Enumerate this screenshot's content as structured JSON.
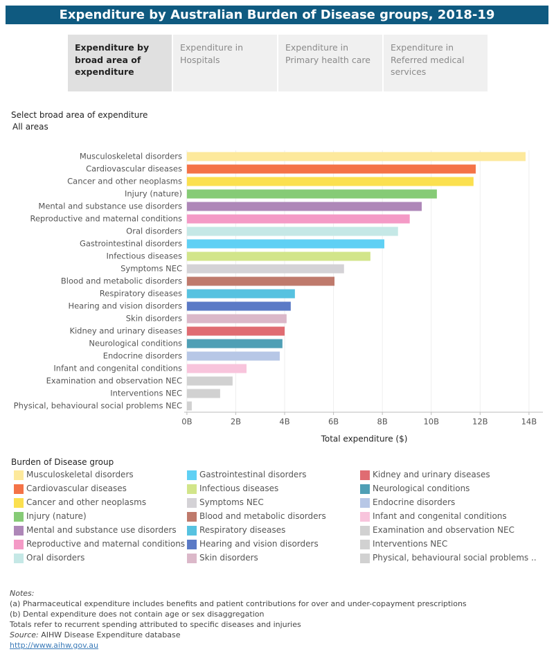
{
  "header": {
    "title": "Expenditure by Australian Burden of Disease groups, 2018-19"
  },
  "tabs": [
    "Expenditure by broad area of expenditure",
    "Expenditure in Hospitals",
    "Expenditure in Primary health care",
    "Expenditure in Referred medical services"
  ],
  "filter": {
    "label": "Select broad area of expenditure",
    "value": "All areas"
  },
  "chart_data": {
    "type": "hbar",
    "categories": [
      "Musculoskeletal disorders",
      "Cardiovascular diseases",
      "Cancer and other neoplasms",
      "Injury (nature)",
      "Mental and substance use disorders",
      "Reproductive and maternal conditions",
      "Oral disorders",
      "Gastrointestinal disorders",
      "Infectious diseases",
      "Symptoms NEC",
      "Blood and metabolic disorders",
      "Respiratory diseases",
      "Hearing and vision disorders",
      "Skin disorders",
      "Kidney and urinary diseases",
      "Neurological conditions",
      "Endocrine disorders",
      "Infant and congenital conditions",
      "Examination and observation NEC",
      "Interventions NEC",
      "Physical, behavioural social problems NEC"
    ],
    "values": [
      13.86,
      11.82,
      11.73,
      10.23,
      9.61,
      9.12,
      8.64,
      8.08,
      7.51,
      6.43,
      6.04,
      4.42,
      4.25,
      4.08,
      4.0,
      3.91,
      3.8,
      2.44,
      1.87,
      1.36,
      0.2
    ],
    "colors": [
      "#fde99c",
      "#f47347",
      "#fbe04f",
      "#86cb76",
      "#ae87b8",
      "#f49ac6",
      "#c5e8e6",
      "#5fd0f4",
      "#d2e58a",
      "#d4d2d6",
      "#bf7a6c",
      "#57c2e0",
      "#5b7ac6",
      "#dbb8c9",
      "#e06c72",
      "#4f9fb5",
      "#b7c7e6",
      "#f8c4dc",
      "#d1d1d1",
      "#d1d1d1",
      "#d1d1d1"
    ],
    "xlabel": "Total expenditure ($)",
    "xlim": [
      -0.11,
      14.57
    ],
    "xticks": [
      {
        "value": 0,
        "label": "0B"
      },
      {
        "value": 2,
        "label": "2B"
      },
      {
        "value": 4,
        "label": "4B"
      },
      {
        "value": 6,
        "label": "6B"
      },
      {
        "value": 8,
        "label": "8B"
      },
      {
        "value": 10,
        "label": "10B"
      },
      {
        "value": 12,
        "label": "12B"
      },
      {
        "value": 14,
        "label": "14B"
      }
    ],
    "grid": true,
    "legend": {
      "title": "Burden of Disease group",
      "labels": [
        "Musculoskeletal disorders",
        "Cardiovascular diseases",
        "Cancer and other neoplasms",
        "Injury (nature)",
        "Mental and substance use disorders",
        "Reproductive and maternal conditions",
        "Oral disorders",
        "Gastrointestinal disorders",
        "Infectious diseases",
        "Symptoms NEC",
        "Blood and metabolic disorders",
        "Respiratory diseases",
        "Hearing and vision disorders",
        "Skin disorders",
        "Kidney and urinary diseases",
        "Neurological conditions",
        "Endocrine disorders",
        "Infant and congenital conditions",
        "Examination and observation NEC",
        "Interventions NEC",
        "Physical, behavioural social problems .."
      ]
    }
  },
  "notes": {
    "heading": "Notes:",
    "lines": [
      "(a) Pharmaceutical expenditure includes benefits and patient contributions for over and under-copayment prescriptions",
      "(b) Dental expenditure does not contain age or sex disaggregation",
      "Totals refer to recurrent spending attributed to specific diseases and injuries"
    ],
    "source_label": "Source:",
    "source": "AIHW Disease Expenditure database",
    "link": "http://www.aihw.gov.au"
  }
}
